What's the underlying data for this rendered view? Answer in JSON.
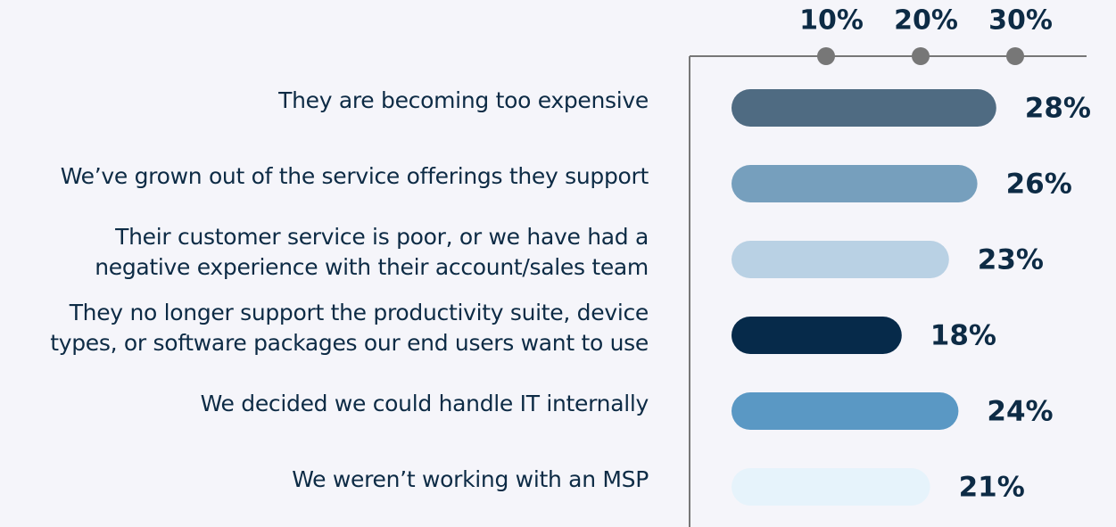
{
  "chart_data": {
    "type": "bar",
    "orientation": "horizontal",
    "categories": [
      "They are becoming too expensive",
      "We’ve grown out of the service offerings they support",
      "Their customer service is poor, or we have had a\nnegative experience with their account/sales team",
      "They no longer support the productivity suite, device\ntypes, or software packages our end users want to use",
      "We decided we could handle IT internally",
      "We weren’t working with an MSP"
    ],
    "values": [
      28,
      26,
      23,
      18,
      24,
      21
    ],
    "value_labels": [
      "28%",
      "26%",
      "23%",
      "18%",
      "24%",
      "21%"
    ],
    "colors": [
      "#4f6b82",
      "#769fbd",
      "#b9d1e4",
      "#062a4a",
      "#5a98c4",
      "#e6f3fb"
    ],
    "xlim": [
      0,
      37.5
    ],
    "xticks": [
      {
        "value": 10,
        "label": "10%"
      },
      {
        "value": 20,
        "label": "20%"
      },
      {
        "value": 30,
        "label": "30%"
      }
    ]
  }
}
